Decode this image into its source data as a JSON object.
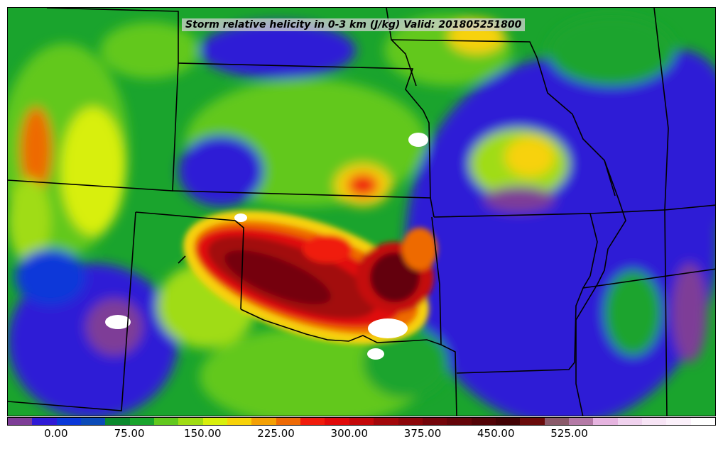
{
  "title": "Storm relative helicity in 0-3 km (J/kg) Valid: 201805251800",
  "colorbar": {
    "colors": [
      "#7e3d97",
      "#2f1ad6",
      "#0a38d9",
      "#0b4bb8",
      "#0c8a2e",
      "#1aa42d",
      "#62c81e",
      "#a0dc14",
      "#d8ef0c",
      "#f7d208",
      "#f3a005",
      "#ee6a06",
      "#f01c0c",
      "#e00a0a",
      "#c4080a",
      "#a2070a",
      "#8c060a",
      "#74050a",
      "#640409",
      "#520307",
      "#420205",
      "#6a0b0b",
      "#8a5a6a",
      "#b47aa6",
      "#e6b4e0",
      "#f0d2ee",
      "#f7e4f5",
      "#fbf0fa",
      "#ffffff"
    ],
    "tick_labels": [
      "0.00",
      "75.00",
      "150.00",
      "225.00",
      "300.00",
      "375.00",
      "450.00",
      "525.00"
    ]
  }
}
